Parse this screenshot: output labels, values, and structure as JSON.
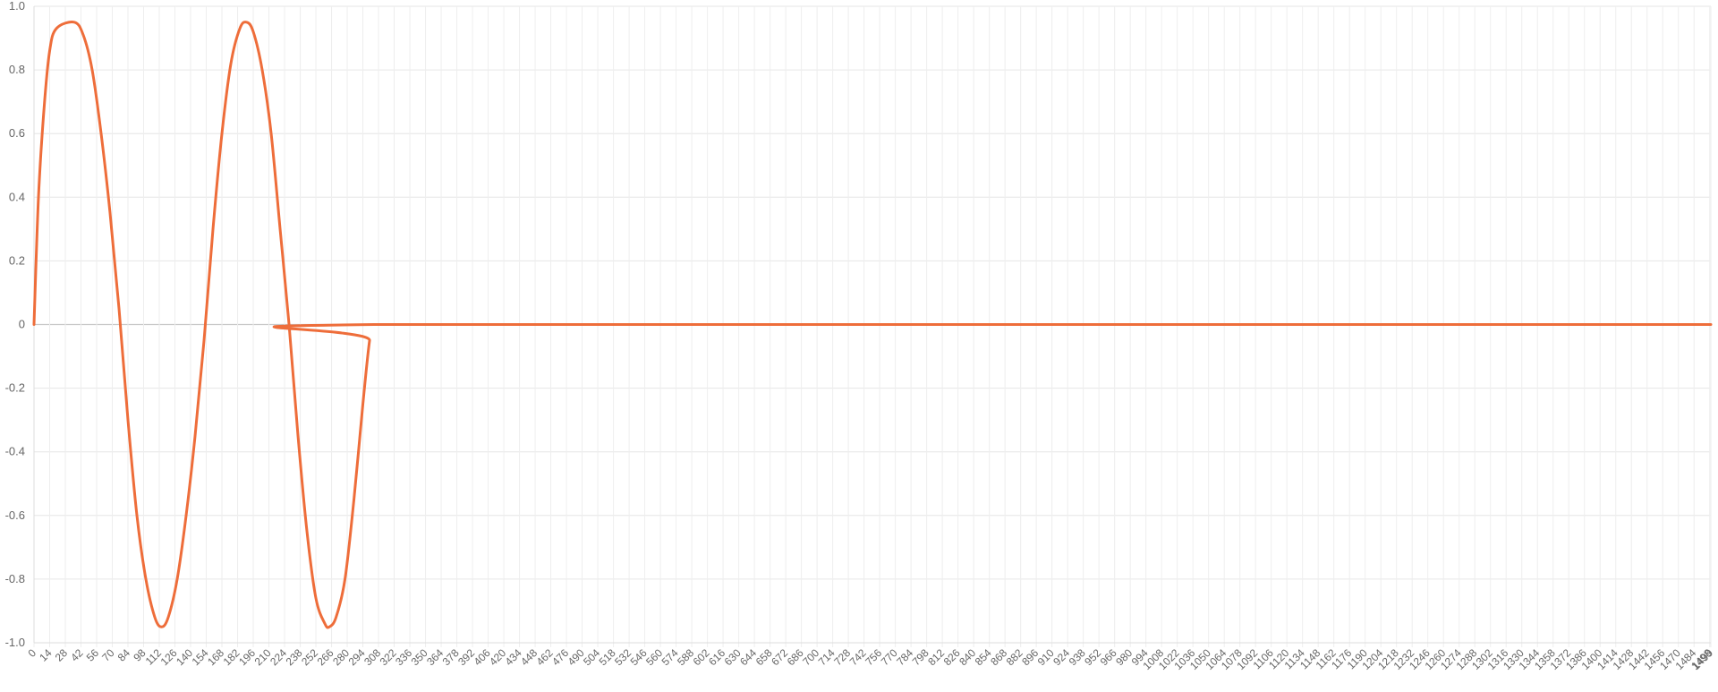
{
  "chart_data": {
    "type": "line",
    "title": "",
    "xlabel": "",
    "ylabel": "",
    "x_range": [
      0,
      1499
    ],
    "x_tick_step": 14,
    "ylim": [
      -1.0,
      1.0
    ],
    "y_ticks": [
      1.0,
      0.8,
      0.6,
      0.4,
      0.2,
      0,
      -0.2,
      -0.4,
      -0.6,
      -0.8,
      -1.0
    ],
    "y_tick_labels": [
      "1.0",
      "0.8",
      "0.6",
      "0.4",
      "0.2",
      "0",
      "-0.2",
      "-0.4",
      "-0.6",
      "-0.8",
      "-1.0"
    ],
    "grid": true,
    "legend": "none",
    "series": [
      {
        "color": "#ee6d3a",
        "points": [
          [
            0,
            0
          ],
          [
            4,
            0.4
          ],
          [
            9,
            0.68
          ],
          [
            14,
            0.86
          ],
          [
            20,
            0.93
          ],
          [
            36,
            0.95
          ],
          [
            44,
            0.91
          ],
          [
            52,
            0.8
          ],
          [
            60,
            0.6
          ],
          [
            68,
            0.35
          ],
          [
            76,
            0.05
          ],
          [
            84,
            -0.3
          ],
          [
            92,
            -0.6
          ],
          [
            100,
            -0.8
          ],
          [
            108,
            -0.92
          ],
          [
            114,
            -0.95
          ],
          [
            120,
            -0.92
          ],
          [
            128,
            -0.8
          ],
          [
            136,
            -0.6
          ],
          [
            144,
            -0.35
          ],
          [
            152,
            -0.05
          ],
          [
            160,
            0.3
          ],
          [
            168,
            0.6
          ],
          [
            176,
            0.82
          ],
          [
            184,
            0.93
          ],
          [
            190,
            0.95
          ],
          [
            196,
            0.92
          ],
          [
            204,
            0.8
          ],
          [
            212,
            0.6
          ],
          [
            220,
            0.3
          ],
          [
            228,
            0.0
          ],
          [
            236,
            -0.35
          ],
          [
            244,
            -0.65
          ],
          [
            252,
            -0.86
          ],
          [
            260,
            -0.94
          ],
          [
            264,
            -0.95
          ],
          [
            270,
            -0.92
          ],
          [
            278,
            -0.8
          ],
          [
            286,
            -0.55
          ],
          [
            294,
            -0.25
          ],
          [
            300,
            -0.05
          ],
          [
            304,
            0
          ],
          [
            1499,
            0
          ]
        ]
      }
    ]
  }
}
